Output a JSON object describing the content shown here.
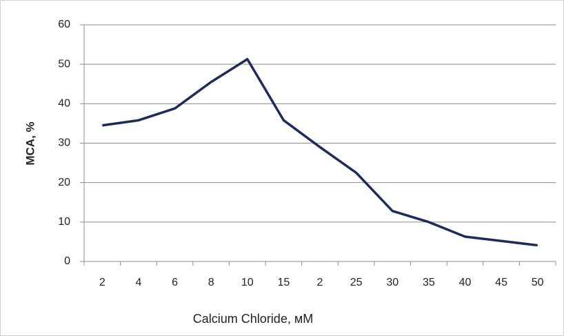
{
  "chart_data": {
    "type": "line",
    "categories": [
      "2",
      "4",
      "6",
      "8",
      "10",
      "15",
      "2",
      "25",
      "30",
      "35",
      "40",
      "45",
      "50"
    ],
    "series": [
      {
        "name": "MCA",
        "color": "#1f2a5c",
        "values": [
          34.5,
          35.8,
          38.8,
          45.5,
          51.3,
          35.8,
          29,
          22.5,
          12.8,
          10,
          6.3,
          5.2,
          4.1
        ]
      }
    ],
    "ylim": [
      0,
      60
    ],
    "yticks": [
      0,
      10,
      20,
      30,
      40,
      50,
      60
    ],
    "grid": true,
    "ylabel": "MCA, %",
    "xlabel": "Calcium Chloride, мМ"
  }
}
